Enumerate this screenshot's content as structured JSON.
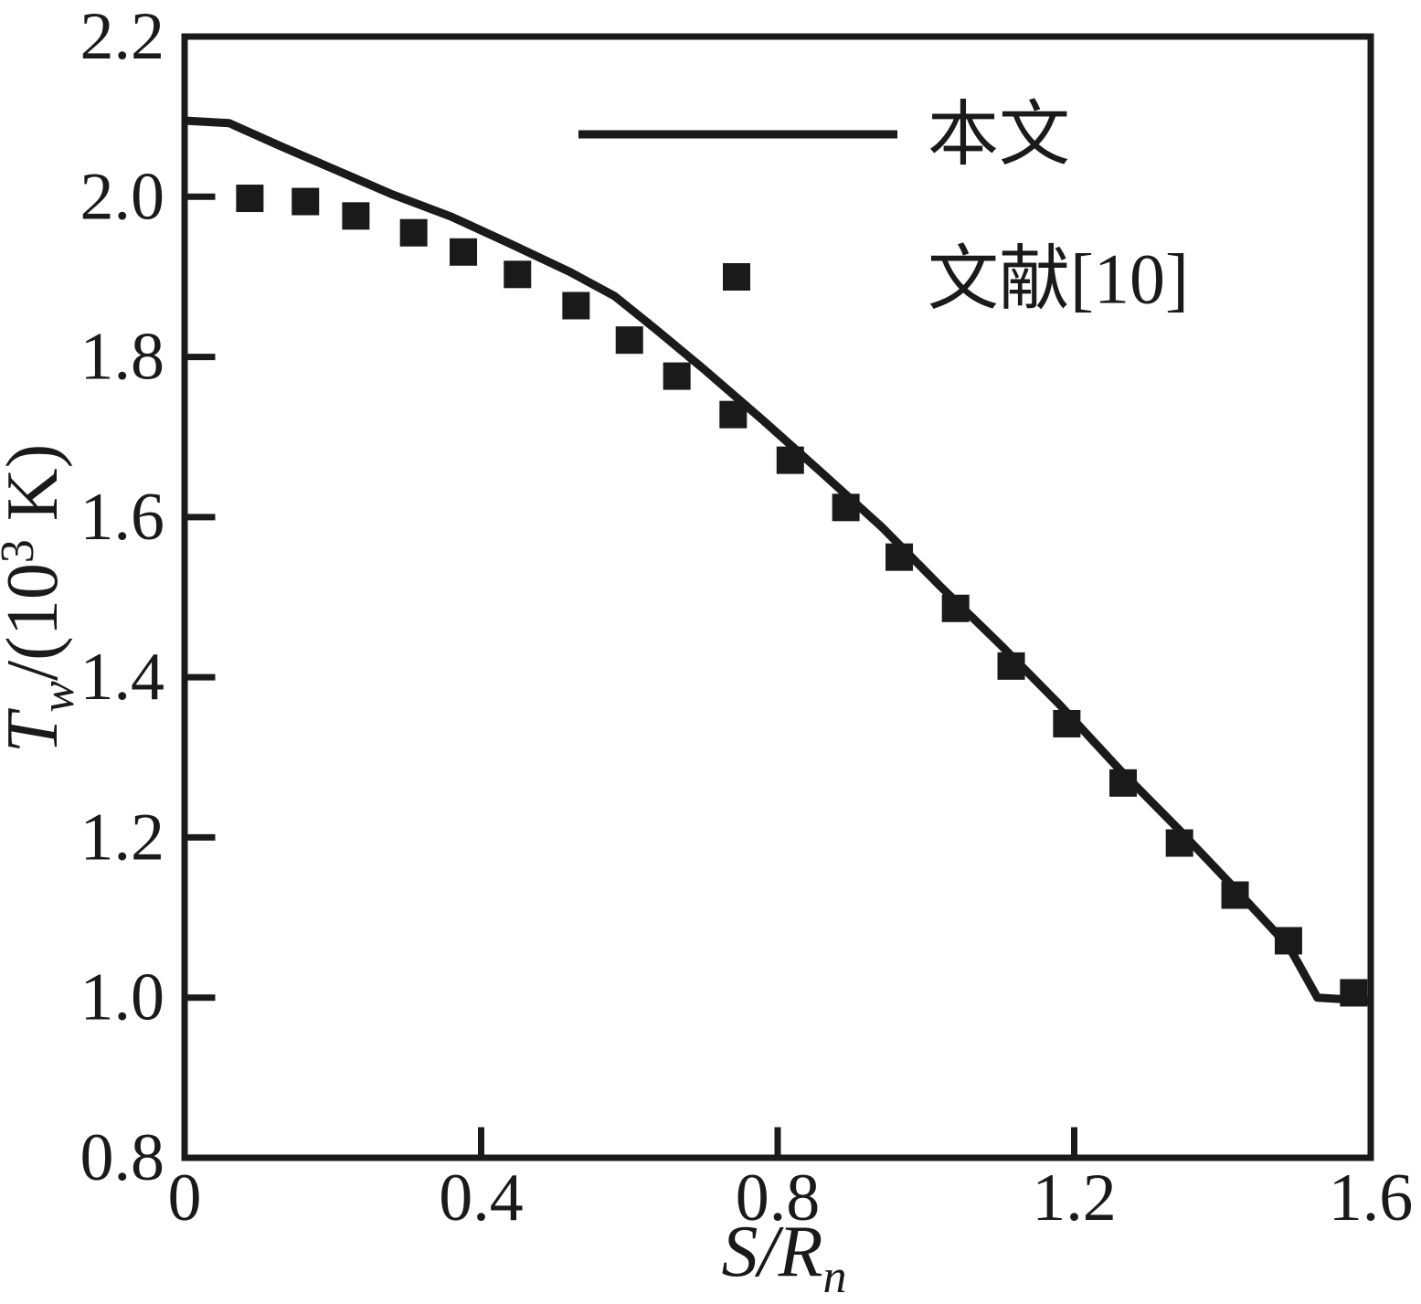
{
  "figure": {
    "background": "#ffffff",
    "ink_color": "#1a1a1a"
  },
  "axes": {
    "x": {
      "label_parts": [
        {
          "text": "S/R",
          "style": "italic"
        },
        {
          "text": "n",
          "style": "sub"
        }
      ],
      "tick_labels": [
        "0",
        "0.4",
        "0.8",
        "1.2",
        "1.6"
      ]
    },
    "y": {
      "label_parts": [
        {
          "text": "T",
          "style": "italic"
        },
        {
          "text": "w",
          "style": "sub"
        },
        {
          "text": "/(10",
          "style": "normal"
        },
        {
          "text": "3",
          "style": "sup"
        },
        {
          "text": " K)",
          "style": "normal"
        }
      ],
      "tick_labels": [
        "0.8",
        "1.0",
        "1.2",
        "1.4",
        "1.6",
        "1.8",
        "2.0",
        "2.2"
      ]
    }
  },
  "legend": {
    "entries": [
      {
        "marker": "line",
        "label": "本文"
      },
      {
        "marker": "filled-square",
        "label": "文献[10]"
      }
    ]
  },
  "chart_data": {
    "type": "line+scatter",
    "title": "",
    "xlabel": "S/R_n",
    "ylabel": "T_w/(10^3 K)",
    "xlim": [
      0,
      1.6
    ],
    "ylim": [
      0.8,
      2.2
    ],
    "x_ticks": [
      0,
      0.4,
      0.8,
      1.2,
      1.6
    ],
    "y_ticks": [
      0.8,
      1.0,
      1.2,
      1.4,
      1.6,
      1.8,
      2.0,
      2.2
    ],
    "grid": false,
    "legend_position": "upper-right-inside",
    "series": [
      {
        "name": "本文",
        "type": "line",
        "points": [
          [
            0.0,
            2.095
          ],
          [
            0.06,
            2.092
          ],
          [
            0.13,
            2.063
          ],
          [
            0.2,
            2.035
          ],
          [
            0.28,
            2.003
          ],
          [
            0.36,
            1.975
          ],
          [
            0.44,
            1.941
          ],
          [
            0.52,
            1.906
          ],
          [
            0.58,
            1.876
          ],
          [
            0.635,
            1.835
          ],
          [
            0.7,
            1.785
          ],
          [
            0.78,
            1.721
          ],
          [
            0.86,
            1.655
          ],
          [
            0.94,
            1.588
          ],
          [
            1.02,
            1.513
          ],
          [
            1.1,
            1.441
          ],
          [
            1.18,
            1.366
          ],
          [
            1.26,
            1.286
          ],
          [
            1.34,
            1.211
          ],
          [
            1.42,
            1.133
          ],
          [
            1.49,
            1.063
          ],
          [
            1.528,
            1.0
          ],
          [
            1.6,
            0.996
          ]
        ]
      },
      {
        "name": "文献[10]",
        "type": "scatter",
        "marker": "filled-square",
        "points": [
          [
            0.088,
            1.998
          ],
          [
            0.163,
            1.994
          ],
          [
            0.231,
            1.976
          ],
          [
            0.309,
            1.955
          ],
          [
            0.376,
            1.931
          ],
          [
            0.449,
            1.903
          ],
          [
            0.528,
            1.864
          ],
          [
            0.6,
            1.821
          ],
          [
            0.664,
            1.776
          ],
          [
            0.74,
            1.728
          ],
          [
            0.817,
            1.671
          ],
          [
            0.892,
            1.612
          ],
          [
            0.964,
            1.55
          ],
          [
            1.04,
            1.486
          ],
          [
            1.115,
            1.414
          ],
          [
            1.19,
            1.342
          ],
          [
            1.266,
            1.268
          ],
          [
            1.342,
            1.193
          ],
          [
            1.417,
            1.128
          ],
          [
            1.489,
            1.071
          ],
          [
            1.577,
            1.006
          ]
        ]
      }
    ]
  }
}
